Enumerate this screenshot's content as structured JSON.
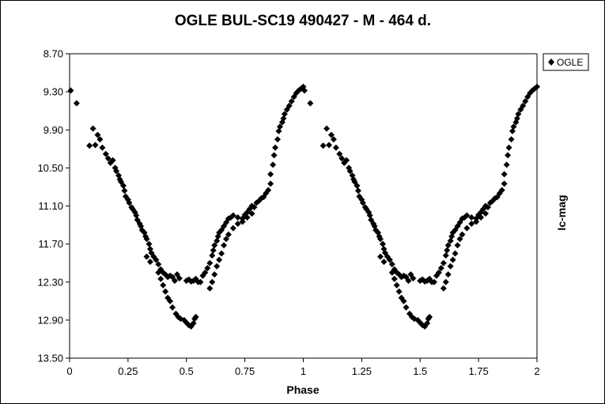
{
  "chart_data": {
    "type": "scatter",
    "title": "OGLE BUL-SC19  490427 - M - 464 d.",
    "xlabel": "Phase",
    "ylabel": "Ic-mag",
    "xlim": [
      0,
      2
    ],
    "ylim": [
      8.7,
      13.5
    ],
    "y_inverted": true,
    "x_ticks": [
      "0",
      "0.25",
      "0.5",
      "0.75",
      "1",
      "1.25",
      "1.5",
      "1.75",
      "2"
    ],
    "x_tick_values": [
      0,
      0.25,
      0.5,
      0.75,
      1,
      1.25,
      1.5,
      1.75,
      2
    ],
    "y_ticks": [
      "8.70",
      "9.30",
      "9.90",
      "10.50",
      "11.10",
      "11.70",
      "12.30",
      "12.90",
      "13.50"
    ],
    "y_tick_values": [
      8.7,
      9.3,
      9.9,
      10.5,
      11.1,
      11.7,
      12.3,
      12.9,
      13.5
    ],
    "grid": false,
    "legend_position": "top-right",
    "marker_color": "#000000",
    "marker": "diamond",
    "series": [
      {
        "name": "OGLE",
        "points": [
          [
            0.005,
            9.28
          ],
          [
            0.03,
            9.48
          ],
          [
            0.085,
            10.15
          ],
          [
            0.1,
            9.88
          ],
          [
            0.11,
            10.14
          ],
          [
            0.12,
            9.98
          ],
          [
            0.13,
            10.05
          ],
          [
            0.14,
            10.18
          ],
          [
            0.155,
            10.28
          ],
          [
            0.165,
            10.35
          ],
          [
            0.175,
            10.42
          ],
          [
            0.185,
            10.38
          ],
          [
            0.195,
            10.5
          ],
          [
            0.2,
            10.55
          ],
          [
            0.21,
            10.62
          ],
          [
            0.215,
            10.68
          ],
          [
            0.22,
            10.72
          ],
          [
            0.23,
            10.78
          ],
          [
            0.235,
            10.86
          ],
          [
            0.24,
            10.95
          ],
          [
            0.25,
            11.0
          ],
          [
            0.255,
            11.05
          ],
          [
            0.265,
            11.12
          ],
          [
            0.27,
            11.15
          ],
          [
            0.28,
            11.2
          ],
          [
            0.285,
            11.25
          ],
          [
            0.29,
            11.32
          ],
          [
            0.3,
            11.38
          ],
          [
            0.305,
            11.42
          ],
          [
            0.31,
            11.48
          ],
          [
            0.32,
            11.52
          ],
          [
            0.325,
            11.58
          ],
          [
            0.33,
            11.62
          ],
          [
            0.34,
            11.7
          ],
          [
            0.345,
            11.78
          ],
          [
            0.35,
            11.84
          ],
          [
            0.36,
            11.9
          ],
          [
            0.37,
            11.95
          ],
          [
            0.38,
            12.02
          ],
          [
            0.39,
            12.1
          ],
          [
            0.4,
            12.15
          ],
          [
            0.41,
            12.18
          ],
          [
            0.42,
            12.22
          ],
          [
            0.43,
            12.2
          ],
          [
            0.44,
            12.22
          ],
          [
            0.45,
            12.28
          ],
          [
            0.46,
            12.18
          ],
          [
            0.47,
            12.24
          ],
          [
            0.33,
            11.9
          ],
          [
            0.345,
            11.98
          ],
          [
            0.38,
            12.15
          ],
          [
            0.39,
            12.25
          ],
          [
            0.4,
            12.35
          ],
          [
            0.41,
            12.45
          ],
          [
            0.42,
            12.55
          ],
          [
            0.43,
            12.6
          ],
          [
            0.44,
            12.7
          ],
          [
            0.455,
            12.8
          ],
          [
            0.465,
            12.85
          ],
          [
            0.475,
            12.88
          ],
          [
            0.49,
            12.9
          ],
          [
            0.5,
            12.94
          ],
          [
            0.51,
            12.98
          ],
          [
            0.52,
            13.0
          ],
          [
            0.53,
            12.95
          ],
          [
            0.535,
            12.88
          ],
          [
            0.54,
            12.85
          ],
          [
            0.5,
            12.28
          ],
          [
            0.51,
            12.26
          ],
          [
            0.52,
            12.29
          ],
          [
            0.53,
            12.28
          ],
          [
            0.54,
            12.25
          ],
          [
            0.55,
            12.3
          ],
          [
            0.56,
            12.3
          ],
          [
            0.57,
            12.2
          ],
          [
            0.58,
            12.15
          ],
          [
            0.59,
            12.08
          ],
          [
            0.6,
            12.0
          ],
          [
            0.61,
            11.88
          ],
          [
            0.615,
            11.8
          ],
          [
            0.62,
            11.72
          ],
          [
            0.63,
            11.65
          ],
          [
            0.635,
            11.58
          ],
          [
            0.64,
            11.52
          ],
          [
            0.65,
            11.48
          ],
          [
            0.66,
            11.42
          ],
          [
            0.67,
            11.36
          ],
          [
            0.68,
            11.3
          ],
          [
            0.69,
            11.28
          ],
          [
            0.7,
            11.25
          ],
          [
            0.72,
            11.28
          ],
          [
            0.74,
            11.3
          ],
          [
            0.75,
            11.24
          ],
          [
            0.76,
            11.2
          ],
          [
            0.77,
            11.15
          ],
          [
            0.78,
            11.1
          ],
          [
            0.79,
            11.12
          ],
          [
            0.8,
            11.05
          ],
          [
            0.81,
            11.02
          ],
          [
            0.82,
            10.98
          ],
          [
            0.83,
            10.96
          ],
          [
            0.84,
            10.9
          ],
          [
            0.85,
            10.85
          ],
          [
            0.86,
            10.75
          ],
          [
            0.6,
            12.4
          ],
          [
            0.61,
            12.3
          ],
          [
            0.62,
            12.18
          ],
          [
            0.63,
            12.05
          ],
          [
            0.64,
            11.95
          ],
          [
            0.65,
            11.85
          ],
          [
            0.66,
            11.72
          ],
          [
            0.67,
            11.62
          ],
          [
            0.68,
            11.55
          ],
          [
            0.7,
            11.45
          ],
          [
            0.72,
            11.38
          ],
          [
            0.74,
            11.35
          ],
          [
            0.76,
            11.28
          ],
          [
            0.78,
            11.22
          ],
          [
            0.86,
            10.6
          ],
          [
            0.87,
            10.45
          ],
          [
            0.875,
            10.3
          ],
          [
            0.88,
            10.18
          ],
          [
            0.89,
            10.05
          ],
          [
            0.895,
            9.92
          ],
          [
            0.9,
            9.85
          ],
          [
            0.91,
            9.78
          ],
          [
            0.915,
            9.72
          ],
          [
            0.92,
            9.65
          ],
          [
            0.93,
            9.58
          ],
          [
            0.94,
            9.52
          ],
          [
            0.95,
            9.45
          ],
          [
            0.96,
            9.38
          ],
          [
            0.97,
            9.32
          ],
          [
            0.98,
            9.28
          ],
          [
            0.99,
            9.25
          ],
          [
            1.0,
            9.22
          ],
          [
            1.005,
            9.28
          ],
          [
            1.03,
            9.48
          ],
          [
            1.085,
            10.15
          ],
          [
            1.1,
            9.88
          ],
          [
            1.11,
            10.14
          ],
          [
            1.12,
            9.98
          ],
          [
            1.13,
            10.05
          ],
          [
            1.14,
            10.18
          ],
          [
            1.155,
            10.28
          ],
          [
            1.165,
            10.35
          ],
          [
            1.175,
            10.42
          ],
          [
            1.185,
            10.38
          ],
          [
            1.195,
            10.5
          ],
          [
            1.2,
            10.55
          ],
          [
            1.21,
            10.62
          ],
          [
            1.215,
            10.68
          ],
          [
            1.22,
            10.72
          ],
          [
            1.23,
            10.78
          ],
          [
            1.235,
            10.86
          ],
          [
            1.24,
            10.95
          ],
          [
            1.25,
            11.0
          ],
          [
            1.255,
            11.05
          ],
          [
            1.265,
            11.12
          ],
          [
            1.27,
            11.15
          ],
          [
            1.28,
            11.2
          ],
          [
            1.285,
            11.25
          ],
          [
            1.29,
            11.32
          ],
          [
            1.3,
            11.38
          ],
          [
            1.305,
            11.42
          ],
          [
            1.31,
            11.48
          ],
          [
            1.32,
            11.52
          ],
          [
            1.325,
            11.58
          ],
          [
            1.33,
            11.62
          ],
          [
            1.34,
            11.7
          ],
          [
            1.345,
            11.78
          ],
          [
            1.35,
            11.84
          ],
          [
            1.36,
            11.9
          ],
          [
            1.37,
            11.95
          ],
          [
            1.38,
            12.02
          ],
          [
            1.39,
            12.1
          ],
          [
            1.4,
            12.15
          ],
          [
            1.41,
            12.18
          ],
          [
            1.42,
            12.22
          ],
          [
            1.43,
            12.2
          ],
          [
            1.44,
            12.22
          ],
          [
            1.45,
            12.28
          ],
          [
            1.46,
            12.18
          ],
          [
            1.47,
            12.24
          ],
          [
            1.33,
            11.9
          ],
          [
            1.345,
            11.98
          ],
          [
            1.38,
            12.15
          ],
          [
            1.39,
            12.25
          ],
          [
            1.4,
            12.35
          ],
          [
            1.41,
            12.45
          ],
          [
            1.42,
            12.55
          ],
          [
            1.43,
            12.6
          ],
          [
            1.44,
            12.7
          ],
          [
            1.455,
            12.8
          ],
          [
            1.465,
            12.85
          ],
          [
            1.475,
            12.88
          ],
          [
            1.49,
            12.9
          ],
          [
            1.5,
            12.94
          ],
          [
            1.51,
            12.98
          ],
          [
            1.52,
            13.0
          ],
          [
            1.53,
            12.95
          ],
          [
            1.535,
            12.88
          ],
          [
            1.54,
            12.85
          ],
          [
            1.5,
            12.28
          ],
          [
            1.51,
            12.26
          ],
          [
            1.52,
            12.29
          ],
          [
            1.53,
            12.28
          ],
          [
            1.54,
            12.25
          ],
          [
            1.55,
            12.3
          ],
          [
            1.56,
            12.3
          ],
          [
            1.57,
            12.2
          ],
          [
            1.58,
            12.15
          ],
          [
            1.59,
            12.08
          ],
          [
            1.6,
            12.0
          ],
          [
            1.61,
            11.88
          ],
          [
            1.615,
            11.8
          ],
          [
            1.62,
            11.72
          ],
          [
            1.63,
            11.65
          ],
          [
            1.635,
            11.58
          ],
          [
            1.64,
            11.52
          ],
          [
            1.65,
            11.48
          ],
          [
            1.66,
            11.42
          ],
          [
            1.67,
            11.36
          ],
          [
            1.68,
            11.3
          ],
          [
            1.69,
            11.28
          ],
          [
            1.7,
            11.25
          ],
          [
            1.72,
            11.28
          ],
          [
            1.74,
            11.3
          ],
          [
            1.75,
            11.24
          ],
          [
            1.76,
            11.2
          ],
          [
            1.77,
            11.15
          ],
          [
            1.78,
            11.1
          ],
          [
            1.79,
            11.12
          ],
          [
            1.8,
            11.05
          ],
          [
            1.81,
            11.02
          ],
          [
            1.82,
            10.98
          ],
          [
            1.83,
            10.96
          ],
          [
            1.84,
            10.9
          ],
          [
            1.85,
            10.85
          ],
          [
            1.86,
            10.75
          ],
          [
            1.6,
            12.4
          ],
          [
            1.61,
            12.3
          ],
          [
            1.62,
            12.18
          ],
          [
            1.63,
            12.05
          ],
          [
            1.64,
            11.95
          ],
          [
            1.65,
            11.85
          ],
          [
            1.66,
            11.72
          ],
          [
            1.67,
            11.62
          ],
          [
            1.68,
            11.55
          ],
          [
            1.7,
            11.45
          ],
          [
            1.72,
            11.38
          ],
          [
            1.74,
            11.35
          ],
          [
            1.76,
            11.28
          ],
          [
            1.78,
            11.22
          ],
          [
            1.86,
            10.6
          ],
          [
            1.87,
            10.45
          ],
          [
            1.875,
            10.3
          ],
          [
            1.88,
            10.18
          ],
          [
            1.89,
            10.05
          ],
          [
            1.895,
            9.92
          ],
          [
            1.9,
            9.85
          ],
          [
            1.91,
            9.78
          ],
          [
            1.915,
            9.72
          ],
          [
            1.92,
            9.65
          ],
          [
            1.93,
            9.58
          ],
          [
            1.94,
            9.52
          ],
          [
            1.95,
            9.45
          ],
          [
            1.96,
            9.38
          ],
          [
            1.97,
            9.32
          ],
          [
            1.98,
            9.28
          ],
          [
            1.99,
            9.25
          ],
          [
            2.0,
            9.22
          ]
        ]
      }
    ]
  }
}
